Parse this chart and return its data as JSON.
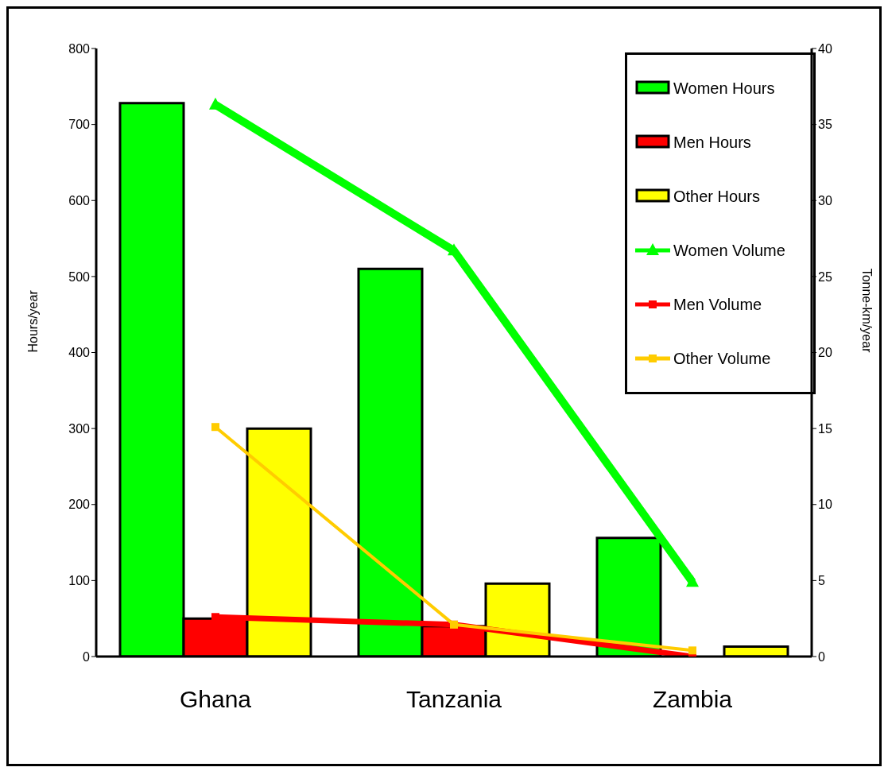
{
  "chart_data": {
    "type": "bar",
    "categories": [
      "Ghana",
      "Tanzania",
      "Zambia"
    ],
    "ylabel": "Hours/year",
    "y2label": "Tonne-km/year",
    "ylim": [
      0,
      800
    ],
    "yticks": [
      0,
      100,
      200,
      300,
      400,
      500,
      600,
      700,
      800
    ],
    "y2lim": [
      0,
      40
    ],
    "y2ticks": [
      0,
      5,
      10,
      15,
      20,
      25,
      30,
      35,
      40
    ],
    "grid": false,
    "legend": "top right",
    "series": [
      {
        "name": "Women Hours",
        "color": "#00ff00",
        "values": [
          728,
          510,
          156
        ]
      },
      {
        "name": "Men Hours",
        "color": "#ff0000",
        "values": [
          50,
          40,
          0
        ]
      },
      {
        "name": "Other Hours",
        "color": "#ffff00",
        "values": [
          300,
          96,
          13
        ]
      },
      {
        "name": "Women Volume",
        "type": "line",
        "axis": "y2",
        "marker": "triangle",
        "color": "#00ff00",
        "values": [
          36.3,
          26.7,
          4.9
        ]
      },
      {
        "name": "Men Volume",
        "type": "line",
        "axis": "y2",
        "marker": "square",
        "color": "#ff0000",
        "values": [
          2.6,
          2.1,
          0
        ]
      },
      {
        "name": "Other Volume",
        "type": "line",
        "axis": "y2",
        "marker": "square",
        "color": "#ffcc00",
        "values": [
          15.1,
          2.1,
          0.4
        ]
      }
    ]
  }
}
